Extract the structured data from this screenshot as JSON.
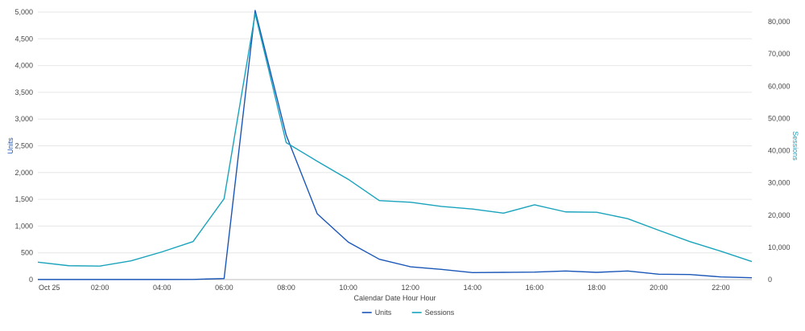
{
  "chart_data": {
    "type": "line",
    "title": "",
    "xlabel": "Calendar Date Hour Hour",
    "ylabel_left": "Units",
    "ylabel_right": "Sessions",
    "x_tick_labels": [
      "Oct 25",
      "02:00",
      "04:00",
      "06:00",
      "08:00",
      "10:00",
      "12:00",
      "14:00",
      "16:00",
      "18:00",
      "20:00",
      "22:00"
    ],
    "x_tick_hours": [
      0,
      2,
      4,
      6,
      8,
      10,
      12,
      14,
      16,
      18,
      20,
      22
    ],
    "x_hours": [
      0,
      1,
      2,
      3,
      4,
      5,
      6,
      7,
      8,
      9,
      10,
      11,
      12,
      13,
      14,
      15,
      16,
      17,
      18,
      19,
      20,
      21,
      22,
      23
    ],
    "xlim": [
      0,
      23
    ],
    "ylim_left": [
      0,
      5000
    ],
    "ylim_right": [
      0,
      83000
    ],
    "y_left_ticks": [
      0,
      500,
      1000,
      1500,
      2000,
      2500,
      3000,
      3500,
      4000,
      4500,
      5000
    ],
    "y_left_tick_labels": [
      "0",
      "500",
      "1,000",
      "1,500",
      "2,000",
      "2,500",
      "3,000",
      "3,500",
      "4,000",
      "4,500",
      "5,000"
    ],
    "y_right_ticks": [
      0,
      10000,
      20000,
      30000,
      40000,
      50000,
      60000,
      70000,
      80000
    ],
    "y_right_tick_labels": [
      "0",
      "10,000",
      "20,000",
      "30,000",
      "40,000",
      "50,000",
      "60,000",
      "70,000",
      "80,000"
    ],
    "grid": true,
    "legend_position": "bottom",
    "series": [
      {
        "name": "Units",
        "axis": "left",
        "color": "#1a56b8",
        "values": [
          2,
          2,
          2,
          2,
          2,
          3,
          20,
          5030,
          2700,
          1230,
          700,
          380,
          240,
          190,
          130,
          135,
          140,
          160,
          135,
          160,
          100,
          95,
          50,
          35
        ]
      },
      {
        "name": "Sessions",
        "axis": "right",
        "color": "#1aa3bc",
        "values": [
          5400,
          4300,
          4200,
          5800,
          8600,
          11800,
          25100,
          82500,
          42500,
          36700,
          31100,
          24500,
          24000,
          22700,
          21900,
          20600,
          23200,
          21000,
          20900,
          18900,
          15300,
          11800,
          8800,
          5600
        ]
      }
    ]
  }
}
